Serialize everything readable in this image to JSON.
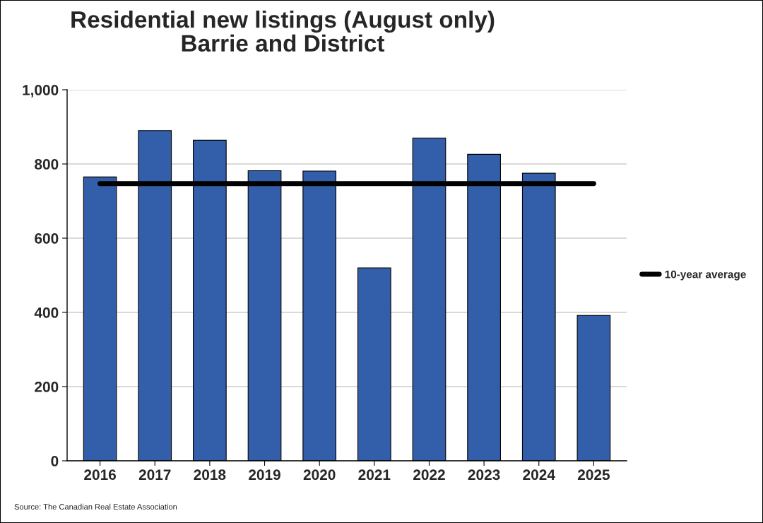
{
  "chart_data": {
    "type": "bar",
    "title": "Residential new listings (August only)\nBarrie and District",
    "categories": [
      "2016",
      "2017",
      "2018",
      "2019",
      "2020",
      "2021",
      "2022",
      "2023",
      "2024",
      "2025"
    ],
    "series": [
      {
        "color": "#335eaa",
        "values": [
          765,
          890,
          864,
          782,
          781,
          520,
          870,
          826,
          775,
          392
        ]
      },
      {
        "type": "line",
        "name": "10-year average",
        "color": "#000000",
        "values": [
          747,
          747,
          747,
          747,
          747,
          747,
          747,
          747,
          747,
          747
        ]
      }
    ],
    "ylim": [
      0,
      1000
    ],
    "yticks": [
      0,
      200,
      400,
      600,
      800,
      {
        "value": 1000,
        "label": "1,000"
      }
    ],
    "grid": "y",
    "legend": "right",
    "marker": "none",
    "line_style": "solid",
    "annotations": [
      "Source: The Canadian Real Estate Association"
    ]
  }
}
